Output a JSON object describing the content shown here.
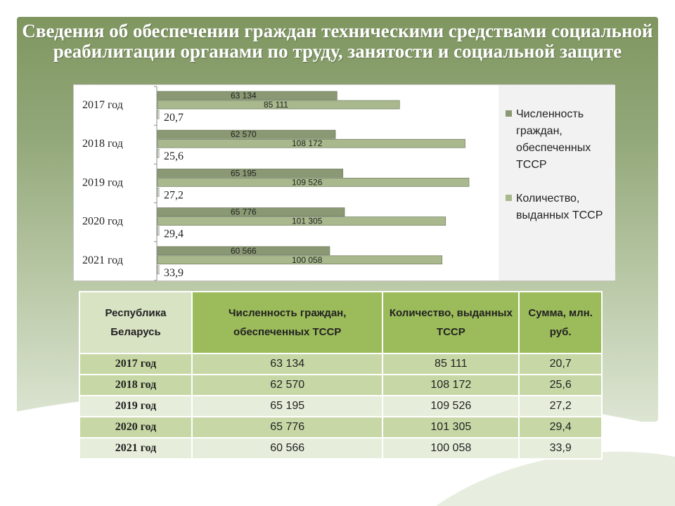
{
  "title": "Сведения об обеспечении граждан техническими средствами социальной реабилитации органами по труду, занятости и социальной защите",
  "colors": {
    "series_dark": "#8a9973",
    "series_light": "#a9b98d",
    "accent": "#9cbb5a"
  },
  "chart_data": {
    "type": "bar",
    "orientation": "horizontal",
    "categories": [
      "2017 год",
      "2018 год",
      "2019 год",
      "2020 год",
      "2021 год"
    ],
    "series": [
      {
        "name": "Численность граждан, обеспеченных ТССР",
        "values": [
          63134,
          62570,
          65195,
          65776,
          60566
        ],
        "labels": [
          "63 134",
          "62 570",
          "65 195",
          "65 776",
          "60 566"
        ]
      },
      {
        "name": "Количество, выданных ТССР",
        "values": [
          85111,
          108172,
          109526,
          101305,
          100058
        ],
        "labels": [
          "85 111",
          "108 172",
          "109 526",
          "101 305",
          "100 058"
        ]
      },
      {
        "name": "",
        "values": [
          20.7,
          25.6,
          27.2,
          29.4,
          33.9
        ],
        "labels": [
          "20,7",
          "25,6",
          "27,2",
          "29,4",
          "33,9"
        ]
      }
    ],
    "legend": "right",
    "grid": false
  },
  "table": {
    "headers": [
      "Республика Беларусь",
      "Численность граждан, обеспеченных ТССР",
      "Количество, выданных ТССР",
      "Сумма, млн. руб."
    ],
    "rows": [
      [
        "2017 год",
        "63 134",
        "85 111",
        "20,7"
      ],
      [
        "2018 год",
        "62 570",
        "108 172",
        "25,6"
      ],
      [
        "2019 год",
        "65 195",
        "109 526",
        "27,2"
      ],
      [
        "2020 год",
        "65 776",
        "101 305",
        "29,4"
      ],
      [
        "2021 год",
        "60 566",
        "100 058",
        "33,9"
      ]
    ]
  }
}
